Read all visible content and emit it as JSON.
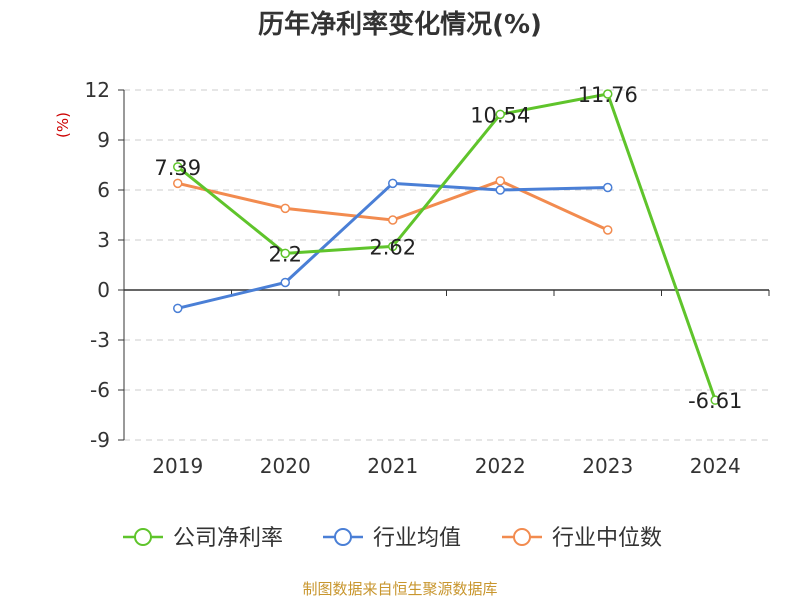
{
  "chart_data": {
    "type": "line",
    "title": "历年净利率变化情况(%)",
    "ylabel": "(%)",
    "xlabel": "",
    "categories": [
      "2019",
      "2020",
      "2021",
      "2022",
      "2023",
      "2024"
    ],
    "yticks": [
      "12",
      "9",
      "6",
      "3",
      "0",
      "-3",
      "-6",
      "-9"
    ],
    "ylim": [
      -9,
      12
    ],
    "grid": "horizontal dashed",
    "legend_position": "bottom",
    "series": [
      {
        "name": "公司净利率",
        "color": "#5fc42b",
        "values": [
          7.39,
          2.2,
          2.62,
          10.54,
          11.76,
          -6.61
        ],
        "labels": [
          "7.39",
          "2.2",
          "2.62",
          "10.54",
          "11.76",
          "-6.61"
        ]
      },
      {
        "name": "行业均值",
        "color": "#4a7fd6",
        "values": [
          -1.1,
          0.45,
          6.4,
          6.0,
          6.15,
          null
        ]
      },
      {
        "name": "行业中位数",
        "color": "#f28b4f",
        "values": [
          6.4,
          4.9,
          4.2,
          6.55,
          3.6,
          null
        ]
      }
    ]
  },
  "footer": {
    "source": "制图数据来自恒生聚源数据库"
  },
  "colors": {
    "title": "#333333",
    "ylabel": "#cc0000",
    "axis": "#333333",
    "grid": "#cccccc",
    "source": "#c8962e"
  }
}
